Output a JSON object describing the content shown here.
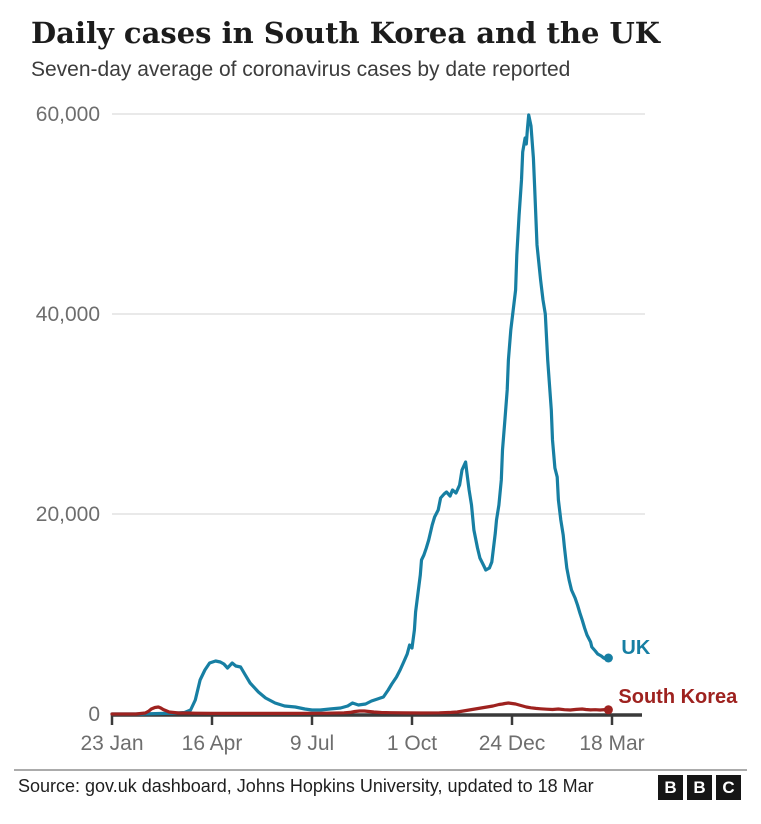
{
  "header": {
    "title": "Daily cases in South Korea and the UK",
    "subtitle": "Seven-day average of coronavirus cases by date reported"
  },
  "footer": {
    "source": "Source: gov.uk dashboard, Johns Hopkins University, updated to 18 Mar",
    "logo_letters": [
      "B",
      "B",
      "C"
    ]
  },
  "colors": {
    "uk": "#177fa3",
    "south_korea": "#9e221f",
    "grid": "#e9e9e9",
    "axis": "#3a3a3a",
    "tick_label": "#6e6e6e"
  },
  "chart_data": {
    "type": "line",
    "title": "Daily cases in South Korea and the UK",
    "subtitle": "Seven-day average of coronavirus cases by date reported",
    "x_axis": {
      "unit": "days since 23 Jan 2020",
      "tick_days": [
        0,
        84,
        168,
        252,
        336,
        420
      ],
      "tick_labels": [
        "23 Jan",
        "16 Apr",
        "9 Jul",
        "1 Oct",
        "24 Dec",
        "18 Mar"
      ],
      "domain_days": [
        0,
        445
      ],
      "start_date": "23 Jan",
      "end_date": "18 Mar"
    },
    "y_axis": {
      "min": 0,
      "max": 60000,
      "ticks": [
        0,
        20000,
        40000,
        60000
      ],
      "tick_labels": [
        "0",
        "20,000",
        "40,000",
        "60,000"
      ],
      "grid": true
    },
    "legend_position": "line-end-labels",
    "series": [
      {
        "name": "UK",
        "color": "#177fa3",
        "end_dot": true,
        "points": [
          [
            0,
            0
          ],
          [
            25,
            0
          ],
          [
            40,
            50
          ],
          [
            52,
            80
          ],
          [
            61,
            150
          ],
          [
            66,
            400
          ],
          [
            70,
            1400
          ],
          [
            74,
            3400
          ],
          [
            78,
            4400
          ],
          [
            82,
            5100
          ],
          [
            87,
            5300
          ],
          [
            91,
            5200
          ],
          [
            94,
            5000
          ],
          [
            97,
            4600
          ],
          [
            101,
            5100
          ],
          [
            104,
            4800
          ],
          [
            108,
            4700
          ],
          [
            112,
            3900
          ],
          [
            116,
            3100
          ],
          [
            123,
            2200
          ],
          [
            129,
            1600
          ],
          [
            137,
            1100
          ],
          [
            145,
            800
          ],
          [
            154,
            700
          ],
          [
            162,
            500
          ],
          [
            168,
            400
          ],
          [
            175,
            400
          ],
          [
            183,
            500
          ],
          [
            192,
            600
          ],
          [
            198,
            800
          ],
          [
            202,
            1100
          ],
          [
            207,
            900
          ],
          [
            213,
            1000
          ],
          [
            218,
            1300
          ],
          [
            223,
            1500
          ],
          [
            228,
            1700
          ],
          [
            232,
            2400
          ],
          [
            235,
            3000
          ],
          [
            239,
            3700
          ],
          [
            242,
            4400
          ],
          [
            245,
            5200
          ],
          [
            248,
            6000
          ],
          [
            250,
            6900
          ],
          [
            252,
            6600
          ],
          [
            254,
            8400
          ],
          [
            255,
            10200
          ],
          [
            257,
            12100
          ],
          [
            259,
            13900
          ],
          [
            260,
            15400
          ],
          [
            262,
            15900
          ],
          [
            264,
            16600
          ],
          [
            266,
            17400
          ],
          [
            269,
            18900
          ],
          [
            271,
            19700
          ],
          [
            274,
            20400
          ],
          [
            276,
            21600
          ],
          [
            279,
            22000
          ],
          [
            281,
            22200
          ],
          [
            284,
            21800
          ],
          [
            286,
            22400
          ],
          [
            289,
            22100
          ],
          [
            292,
            22900
          ],
          [
            294,
            24400
          ],
          [
            297,
            25200
          ],
          [
            298,
            24200
          ],
          [
            300,
            22400
          ],
          [
            302,
            20900
          ],
          [
            304,
            18400
          ],
          [
            307,
            16600
          ],
          [
            309,
            15600
          ],
          [
            312,
            14900
          ],
          [
            314,
            14400
          ],
          [
            317,
            14600
          ],
          [
            319,
            15200
          ],
          [
            322,
            18100
          ],
          [
            323,
            19400
          ],
          [
            325,
            20900
          ],
          [
            327,
            23400
          ],
          [
            328,
            26400
          ],
          [
            330,
            29400
          ],
          [
            332,
            32400
          ],
          [
            333,
            35400
          ],
          [
            335,
            38400
          ],
          [
            337,
            40400
          ],
          [
            339,
            42400
          ],
          [
            340,
            45900
          ],
          [
            342,
            49900
          ],
          [
            344,
            53400
          ],
          [
            345,
            56200
          ],
          [
            347,
            57600
          ],
          [
            348,
            57000
          ],
          [
            349,
            58600
          ],
          [
            350,
            59900
          ],
          [
            352,
            58800
          ],
          [
            354,
            55600
          ],
          [
            355,
            52800
          ],
          [
            357,
            46900
          ],
          [
            360,
            43400
          ],
          [
            362,
            41400
          ],
          [
            364,
            40000
          ],
          [
            366,
            35400
          ],
          [
            369,
            30400
          ],
          [
            370,
            27400
          ],
          [
            372,
            24600
          ],
          [
            374,
            23700
          ],
          [
            375,
            21400
          ],
          [
            377,
            19400
          ],
          [
            379,
            17900
          ],
          [
            380,
            16700
          ],
          [
            382,
            14600
          ],
          [
            384,
            13400
          ],
          [
            386,
            12400
          ],
          [
            389,
            11600
          ],
          [
            391,
            10900
          ],
          [
            393,
            10100
          ],
          [
            395,
            9400
          ],
          [
            397,
            8600
          ],
          [
            399,
            7900
          ],
          [
            402,
            7200
          ],
          [
            403,
            6700
          ],
          [
            406,
            6300
          ],
          [
            408,
            6000
          ],
          [
            411,
            5800
          ],
          [
            413,
            5600
          ],
          [
            415,
            5500
          ],
          [
            417,
            5600
          ]
        ]
      },
      {
        "name": "South Korea",
        "color": "#9e221f",
        "end_dot": true,
        "points": [
          [
            0,
            0
          ],
          [
            20,
            0
          ],
          [
            28,
            100
          ],
          [
            31,
            300
          ],
          [
            33,
            500
          ],
          [
            36,
            650
          ],
          [
            39,
            700
          ],
          [
            41,
            600
          ],
          [
            43,
            450
          ],
          [
            46,
            300
          ],
          [
            48,
            200
          ],
          [
            52,
            150
          ],
          [
            56,
            100
          ],
          [
            63,
            100
          ],
          [
            70,
            80
          ],
          [
            84,
            60
          ],
          [
            100,
            60
          ],
          [
            120,
            60
          ],
          [
            140,
            60
          ],
          [
            160,
            60
          ],
          [
            180,
            80
          ],
          [
            195,
            120
          ],
          [
            200,
            160
          ],
          [
            204,
            250
          ],
          [
            208,
            300
          ],
          [
            212,
            300
          ],
          [
            216,
            250
          ],
          [
            220,
            200
          ],
          [
            226,
            150
          ],
          [
            234,
            130
          ],
          [
            245,
            110
          ],
          [
            260,
            100
          ],
          [
            275,
            120
          ],
          [
            285,
            160
          ],
          [
            290,
            200
          ],
          [
            295,
            300
          ],
          [
            300,
            400
          ],
          [
            305,
            500
          ],
          [
            310,
            600
          ],
          [
            315,
            700
          ],
          [
            320,
            800
          ],
          [
            325,
            950
          ],
          [
            328,
            1000
          ],
          [
            330,
            1050
          ],
          [
            333,
            1100
          ],
          [
            336,
            1050
          ],
          [
            339,
            1000
          ],
          [
            342,
            900
          ],
          [
            345,
            800
          ],
          [
            348,
            700
          ],
          [
            352,
            620
          ],
          [
            356,
            560
          ],
          [
            360,
            520
          ],
          [
            365,
            480
          ],
          [
            370,
            450
          ],
          [
            375,
            500
          ],
          [
            380,
            430
          ],
          [
            385,
            400
          ],
          [
            390,
            460
          ],
          [
            395,
            500
          ],
          [
            398,
            450
          ],
          [
            402,
            410
          ],
          [
            406,
            430
          ],
          [
            410,
            400
          ],
          [
            414,
            440
          ],
          [
            417,
            420
          ]
        ]
      }
    ]
  }
}
